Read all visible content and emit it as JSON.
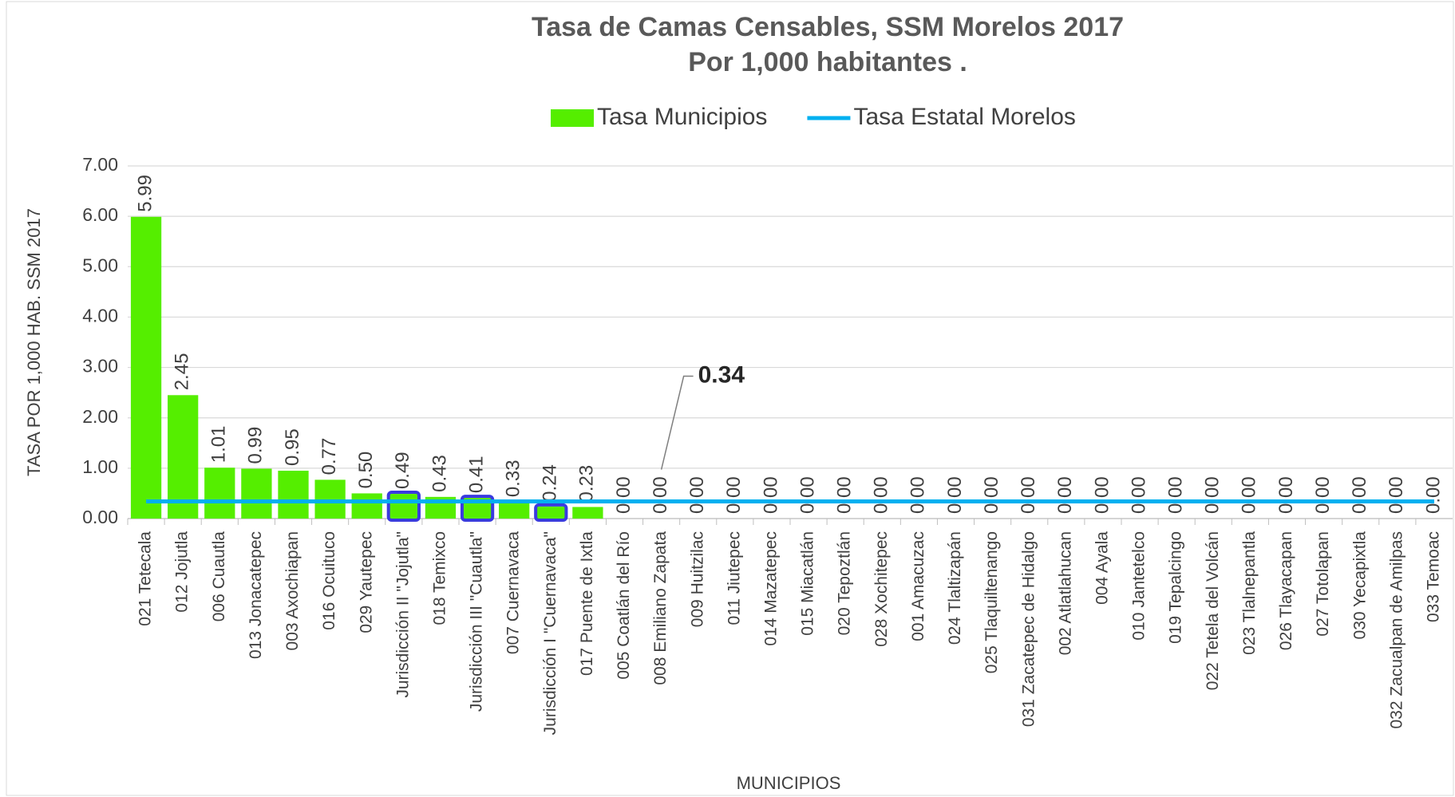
{
  "chart_data": {
    "type": "bar",
    "title": "Tasa de Camas Censables, SSM Morelos 2017",
    "subtitle": "Por 1,000 habitantes .",
    "x_label": "MUNICIPIOS",
    "y_label": "TASA POR 1,000 HAB. SSM 2017",
    "categories": [
      "021 Tetecala",
      "012 Jojutla",
      "006 Cuautla",
      "013 Jonacatepec",
      "003 Axochiapan",
      "016 Ocuituco",
      "029 Yautepec",
      "Jurisdicción II \"Jojutla\"",
      "018 Temixco",
      "Jurisdicción III \"Cuautla\"",
      "007 Cuernavaca",
      "Jurisdicción I \"Cuernavaca\"",
      "017 Puente de Ixtla",
      "005 Coatlán del Río",
      "008 Emiliano Zapata",
      "009 Huitzilac",
      "011 Jiutepec",
      "014 Mazatepec",
      "015 Miacatlán",
      "020 Tepoztlán",
      "028 Xochitepec",
      "001 Amacuzac",
      "024 Tlaltizapán",
      "025 Tlaquiltenango",
      "031 Zacatepec de Hidalgo",
      "002 Atlatlahucan",
      "004 Ayala",
      "010 Jantetelco",
      "019 Tepalcingo",
      "022 Tetela del Volcán",
      "023 Tlalnepantla",
      "026 Tlayacapan",
      "027 Totolapan",
      "030 Yecapixtla",
      "032 Zacualpan de Amilpas",
      "033 Temoac"
    ],
    "series": [
      {
        "name": "Tasa Municipios",
        "type": "bar",
        "color": "#55ee00",
        "values": [
          5.99,
          2.45,
          1.01,
          0.99,
          0.95,
          0.77,
          0.5,
          0.49,
          0.43,
          0.41,
          0.33,
          0.24,
          0.23,
          0,
          0,
          0,
          0,
          0,
          0,
          0,
          0,
          0,
          0,
          0,
          0,
          0,
          0,
          0,
          0,
          0,
          0,
          0,
          0,
          0,
          0,
          0
        ],
        "value_labels": [
          "5.99",
          "2.45",
          "1.01",
          "0.99",
          "0.95",
          "0.77",
          "0.50",
          "0.49",
          "0.43",
          "0.41",
          "0.33",
          "0.24",
          "0.23",
          "0.00",
          "0.00",
          "0.00",
          "0.00",
          "0.00",
          "0.00",
          "0.00",
          "0.00",
          "0.00",
          "0.00",
          "0.00",
          "0.00",
          "0.00",
          "0.00",
          "0.00",
          "0.00",
          "0.00",
          "0.00",
          "0.00",
          "0.00",
          "0.00",
          "0.00",
          "0.00"
        ],
        "edge_colors": [
          null,
          null,
          null,
          null,
          null,
          null,
          null,
          "#3a3adf",
          null,
          "#3a3adf",
          null,
          "#3a3adf",
          null,
          null,
          null,
          null,
          null,
          null,
          null,
          null,
          null,
          null,
          null,
          null,
          null,
          null,
          null,
          null,
          null,
          null,
          null,
          null,
          null,
          null,
          null,
          null
        ]
      },
      {
        "name": "Tasa Estatal Morelos",
        "type": "line",
        "color": "#00b0f0",
        "values": [
          0.34,
          0.34,
          0.34,
          0.34,
          0.34,
          0.34,
          0.34,
          0.34,
          0.34,
          0.34,
          0.34,
          0.34,
          0.34,
          0.34,
          0.34,
          0.34,
          0.34,
          0.34,
          0.34,
          0.34,
          0.34,
          0.34,
          0.34,
          0.34,
          0.34,
          0.34,
          0.34,
          0.34,
          0.34,
          0.34,
          0.34,
          0.34,
          0.34,
          0.34,
          0.34,
          0.34
        ]
      }
    ],
    "ylim": [
      0,
      7
    ],
    "yticks": [
      {
        "value": 0,
        "label": "0.00"
      },
      {
        "value": 1,
        "label": "1.00"
      },
      {
        "value": 2,
        "label": "2.00"
      },
      {
        "value": 3,
        "label": "3.00"
      },
      {
        "value": 4,
        "label": "4.00"
      },
      {
        "value": 5,
        "label": "5.00"
      },
      {
        "value": 6,
        "label": "6.00"
      },
      {
        "value": 7,
        "label": "7.00"
      }
    ],
    "grid": true,
    "legend": "top"
  }
}
